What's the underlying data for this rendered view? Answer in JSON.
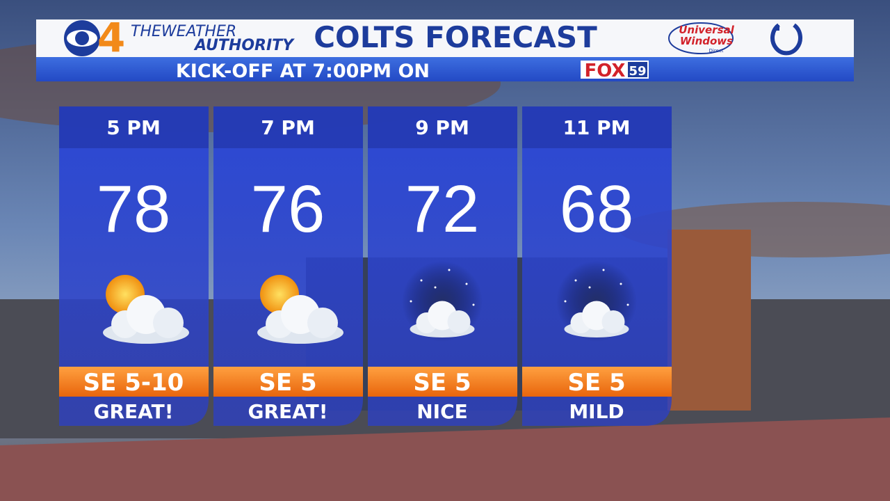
{
  "header": {
    "station": "4",
    "brand_line1": "THEWEATHER",
    "brand_line2": "AUTHORITY",
    "title": "COLTS FORECAST",
    "sponsor_line1": "Universal",
    "sponsor_line2": "Windows",
    "sponsor_line3": "Direct"
  },
  "subheader": {
    "text": "KICK-OFF AT 7:00PM ON",
    "network": "FOX",
    "channel": "59"
  },
  "cards": [
    {
      "time": "5 PM",
      "temp": "78",
      "wind": "SE 5-10",
      "desc": "GREAT!"
    },
    {
      "time": "7 PM",
      "temp": "76",
      "wind": "SE 5",
      "desc": "GREAT!"
    },
    {
      "time": "9 PM",
      "temp": "72",
      "wind": "SE 5",
      "desc": "NICE"
    },
    {
      "time": "11 PM",
      "temp": "68",
      "wind": "SE 5",
      "desc": "MILD"
    }
  ]
}
